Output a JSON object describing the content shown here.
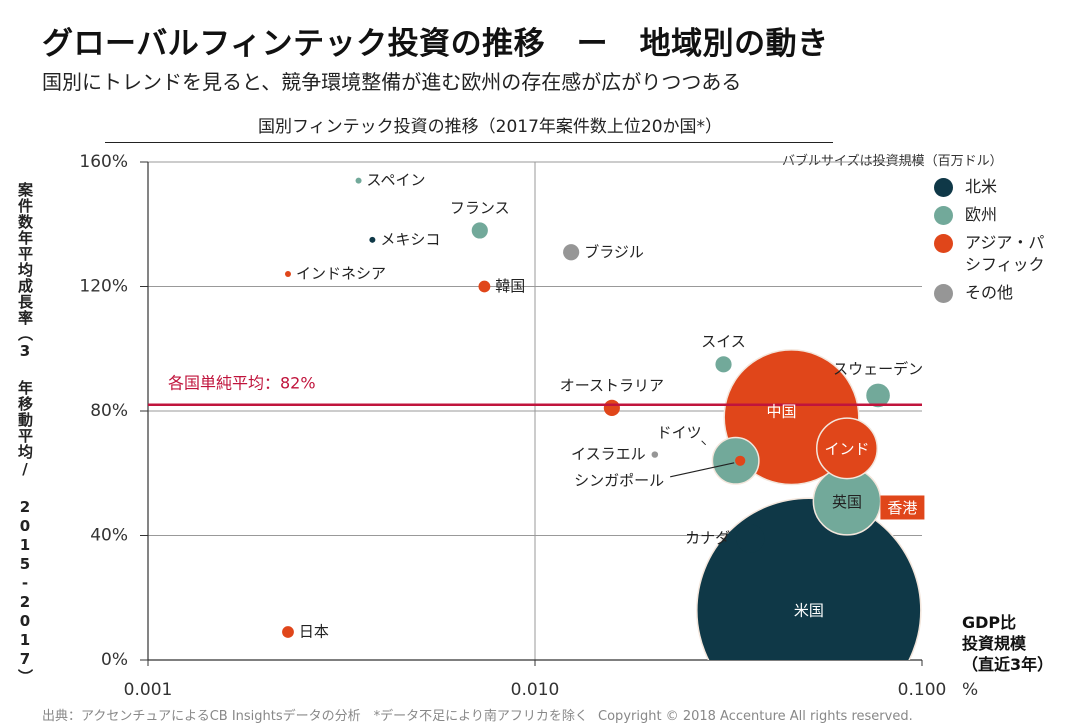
{
  "header": {
    "title": "グローバルフィンテック投資の推移　ー　地域別の動き",
    "subtitle": "国別にトレンドを見ると、競争環境整備が進む欧州の存在感が広がりつつある"
  },
  "footer": {
    "source": "出典：アクセンチュアによるCB Insightsデータの分析　*データ不足により南アフリカを除く",
    "copyright": "Copyright © 2018 Accenture  All rights reserved."
  },
  "chart_data": {
    "type": "scatter",
    "subtype": "bubble",
    "title": "国別フィンテック投資の推移（2017年案件数上位20か国*）",
    "bubble_note": "バブルサイズは投資規模（百万ドル）",
    "xlabel": "GDP比\n投資規模\n（直近3年）",
    "xlabel_lines": [
      "GDP比",
      "投資規模",
      "（直近3年）"
    ],
    "xunit": "%",
    "xscale": "log",
    "xlim": [
      0.001,
      0.1
    ],
    "xticks": [
      "0.001",
      "0.010",
      "0.100"
    ],
    "ylabel": "案件数年平均成長率（3 年移動平均/ 2015-2017）",
    "ylim": [
      0,
      160
    ],
    "yticks": [
      "0%",
      "40%",
      "80%",
      "120%",
      "160%"
    ],
    "ytick_values": [
      0,
      40,
      80,
      120,
      160
    ],
    "grid": "major",
    "reference_line": {
      "label": "各国単純平均：82%",
      "value": 82,
      "color": "#c0143c"
    },
    "legend_position": "right",
    "legend": [
      {
        "key": "na",
        "label": "北米",
        "color": "#0f3847"
      },
      {
        "key": "eu",
        "label": "欧州",
        "color": "#72a99a"
      },
      {
        "key": "ap",
        "label": "アジア・パシフィック",
        "color": "#e0461a"
      },
      {
        "key": "ot",
        "label": "その他",
        "color": "#969696"
      }
    ],
    "points": [
      {
        "label": "米国",
        "region": "na",
        "x": 0.051,
        "y": 16,
        "size": 14400,
        "label_pos": "inside"
      },
      {
        "label": "中国",
        "region": "ap",
        "x": 0.046,
        "y": 78,
        "size": 5200,
        "label_pos": "inside-top"
      },
      {
        "label": "英国",
        "region": "eu",
        "x": 0.064,
        "y": 51,
        "size": 1300,
        "label_pos": "inside"
      },
      {
        "label": "インド",
        "region": "ap",
        "x": 0.064,
        "y": 68,
        "size": 1050,
        "label_pos": "inside"
      },
      {
        "label": "ドイツ",
        "region": "eu",
        "x": 0.033,
        "y": 64,
        "size": 620,
        "label_pos": "left-top"
      },
      {
        "label": "シンガポール",
        "region": "ap",
        "x": 0.0339,
        "y": 64,
        "size": 30,
        "label_pos": "left-bottom"
      },
      {
        "label": "カナダ",
        "region": "na",
        "x": 0.036,
        "y": 39,
        "size": 230,
        "label_pos": "left"
      },
      {
        "label": "スウェーデン",
        "region": "eu",
        "x": 0.077,
        "y": 85,
        "size": 160,
        "label_pos": "top"
      },
      {
        "label": "香港",
        "region": "ap",
        "x": 0.089,
        "y": 49,
        "size": 60,
        "label_pos": "badge"
      },
      {
        "label": "スイス",
        "region": "eu",
        "x": 0.0307,
        "y": 95,
        "size": 75,
        "label_pos": "top"
      },
      {
        "label": "オーストラリア",
        "region": "ap",
        "x": 0.0158,
        "y": 81,
        "size": 75,
        "label_pos": "top"
      },
      {
        "label": "フランス",
        "region": "eu",
        "x": 0.0072,
        "y": 138,
        "size": 75,
        "label_pos": "top"
      },
      {
        "label": "ブラジル",
        "region": "ot",
        "x": 0.0124,
        "y": 131,
        "size": 75,
        "label_pos": "right"
      },
      {
        "label": "韓国",
        "region": "ap",
        "x": 0.0074,
        "y": 120,
        "size": 40,
        "label_pos": "right"
      },
      {
        "label": "日本",
        "region": "ap",
        "x": 0.0023,
        "y": 9,
        "size": 40,
        "label_pos": "right"
      },
      {
        "label": "イスラエル",
        "region": "ot",
        "x": 0.0204,
        "y": 66,
        "size": 12,
        "label_pos": "left"
      },
      {
        "label": "メキシコ",
        "region": "na",
        "x": 0.0038,
        "y": 135,
        "size": 8,
        "label_pos": "right"
      },
      {
        "label": "スペイン",
        "region": "eu",
        "x": 0.0035,
        "y": 154,
        "size": 8,
        "label_pos": "right"
      },
      {
        "label": "インドネシア",
        "region": "ap",
        "x": 0.0023,
        "y": 124,
        "size": 2,
        "label_pos": "right"
      }
    ]
  }
}
